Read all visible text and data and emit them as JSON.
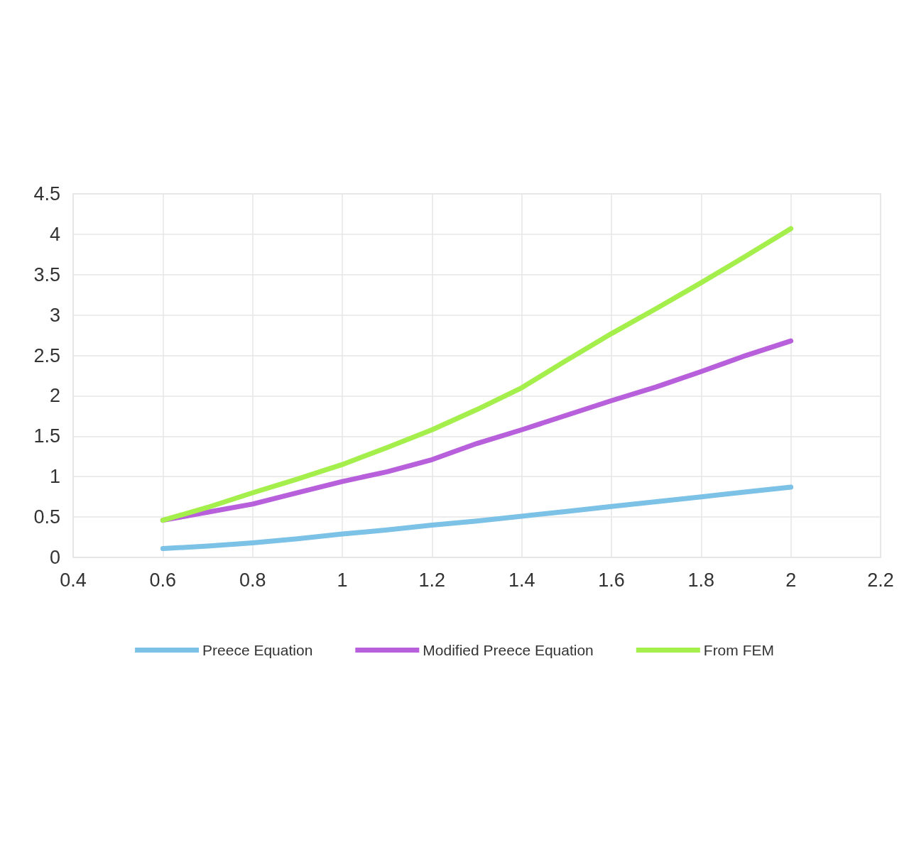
{
  "chart_data": {
    "type": "line",
    "x": [
      0.6,
      0.7,
      0.8,
      0.9,
      1.0,
      1.1,
      1.2,
      1.3,
      1.4,
      1.5,
      1.6,
      1.7,
      1.8,
      1.9,
      2.0
    ],
    "series": [
      {
        "name": "Preece Equation",
        "color": "#7cc1e6",
        "values": [
          0.11,
          0.14,
          0.18,
          0.23,
          0.29,
          0.34,
          0.4,
          0.45,
          0.51,
          0.57,
          0.63,
          0.69,
          0.75,
          0.81,
          0.87
        ]
      },
      {
        "name": "Modified Preece Equation",
        "color": "#b860dc",
        "values": [
          0.46,
          0.56,
          0.66,
          0.8,
          0.94,
          1.06,
          1.21,
          1.41,
          1.58,
          1.76,
          1.94,
          2.11,
          2.3,
          2.5,
          2.68
        ]
      },
      {
        "name": "From FEM",
        "color": "#a5ef4c",
        "values": [
          0.46,
          0.62,
          0.8,
          0.97,
          1.15,
          1.36,
          1.58,
          1.83,
          2.1,
          2.44,
          2.77,
          3.08,
          3.4,
          3.73,
          4.07
        ]
      }
    ],
    "xlim": [
      0.4,
      2.2
    ],
    "xticks": [
      0.4,
      0.6,
      0.8,
      1,
      1.2,
      1.4,
      1.6,
      1.8,
      2,
      2.2
    ],
    "ylim": [
      0,
      4.5
    ],
    "yticks": [
      0,
      0.5,
      1,
      1.5,
      2,
      2.5,
      3,
      3.5,
      4,
      4.5
    ],
    "grid": true,
    "legend": "bottom",
    "marker": "none",
    "line_style": "solid"
  }
}
